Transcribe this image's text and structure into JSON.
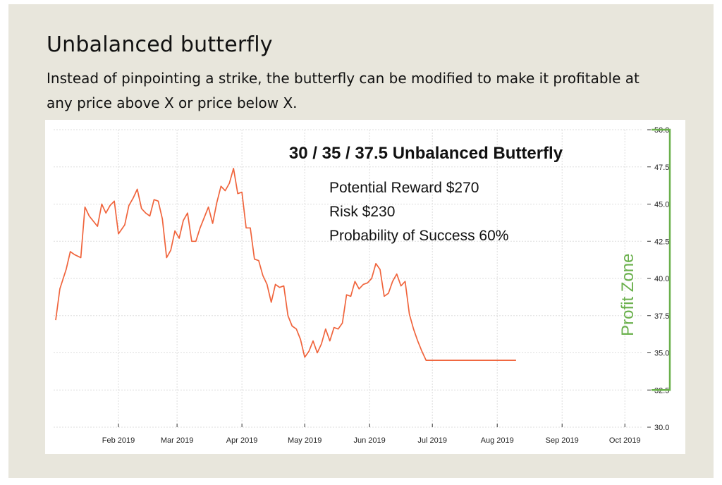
{
  "header": {
    "title": "Unbalanced butterfly",
    "description": "Instead of pinpointing a strike, the butterfly can be modified to make it profitable at any price above X or price below X."
  },
  "chart_data": {
    "type": "line",
    "title": "30 / 35 / 37.5 Unbalanced Butterfly",
    "annotations": [
      "Potential Reward $270",
      "Risk $230",
      "Probability of Success 60%"
    ],
    "profit_zone_label": "Profit Zone",
    "profit_zone_range": [
      32.5,
      50.0
    ],
    "profit_zone_color": "#6ab04c",
    "line_color": "#f0643c",
    "grid": true,
    "y_axis_position": "right",
    "ylim": [
      30.0,
      50.0
    ],
    "y_ticks": [
      "30.0",
      "32.5",
      "35.0",
      "37.5",
      "40.0",
      "42.5",
      "45.0",
      "47.5",
      "50.0"
    ],
    "x_ticks": [
      "Feb 2019",
      "Mar 2019",
      "Apr 2019",
      "May 2019",
      "Jun 2019",
      "Jul 2019",
      "Aug 2019",
      "Sep 2019",
      "Oct 2019"
    ],
    "x_tick_dates": [
      "2019-02-01",
      "2019-03-01",
      "2019-04-01",
      "2019-05-01",
      "2019-06-01",
      "2019-07-01",
      "2019-08-01",
      "2019-09-01",
      "2019-10-01"
    ],
    "xlim": [
      "2019-01-01",
      "2019-10-09"
    ],
    "series": [
      {
        "x": [
          "2019-01-02",
          "2019-01-04",
          "2019-01-07",
          "2019-01-09",
          "2019-01-11",
          "2019-01-14",
          "2019-01-16",
          "2019-01-18",
          "2019-01-22",
          "2019-01-24",
          "2019-01-26",
          "2019-01-28",
          "2019-01-30",
          "2019-02-01",
          "2019-02-04",
          "2019-02-06",
          "2019-02-08",
          "2019-02-10",
          "2019-02-12",
          "2019-02-14",
          "2019-02-16",
          "2019-02-18",
          "2019-02-20",
          "2019-02-22",
          "2019-02-24",
          "2019-02-26",
          "2019-02-28",
          "2019-03-02",
          "2019-03-04",
          "2019-03-06",
          "2019-03-08",
          "2019-03-10",
          "2019-03-12",
          "2019-03-14",
          "2019-03-16",
          "2019-03-18",
          "2019-03-20",
          "2019-03-22",
          "2019-03-24",
          "2019-03-26",
          "2019-03-28",
          "2019-03-30",
          "2019-04-01",
          "2019-04-03",
          "2019-04-05",
          "2019-04-07",
          "2019-04-09",
          "2019-04-11",
          "2019-04-13",
          "2019-04-15",
          "2019-04-17",
          "2019-04-19",
          "2019-04-21",
          "2019-04-23",
          "2019-04-25",
          "2019-04-27",
          "2019-04-29",
          "2019-05-01",
          "2019-05-03",
          "2019-05-05",
          "2019-05-07",
          "2019-05-09",
          "2019-05-11",
          "2019-05-13",
          "2019-05-15",
          "2019-05-17",
          "2019-05-19",
          "2019-05-21",
          "2019-05-23",
          "2019-05-25",
          "2019-05-27",
          "2019-05-29",
          "2019-05-31",
          "2019-06-02",
          "2019-06-04",
          "2019-06-06",
          "2019-06-08",
          "2019-06-10",
          "2019-06-12",
          "2019-06-14",
          "2019-06-16",
          "2019-06-18",
          "2019-06-20",
          "2019-06-22",
          "2019-06-24",
          "2019-06-26",
          "2019-06-28",
          "2019-06-30",
          "2019-07-02",
          "2019-07-04",
          "2019-07-06",
          "2019-07-08",
          "2019-07-10",
          "2019-07-12",
          "2019-07-14",
          "2019-07-16",
          "2019-07-18",
          "2019-07-20",
          "2019-07-22",
          "2019-07-24",
          "2019-07-26",
          "2019-07-28",
          "2019-07-30",
          "2019-08-01",
          "2019-08-03",
          "2019-08-05",
          "2019-08-07",
          "2019-08-09",
          "2019-08-10"
        ],
        "values": [
          37.2,
          39.3,
          40.6,
          41.8,
          41.6,
          41.4,
          44.8,
          44.2,
          43.5,
          45.0,
          44.4,
          44.9,
          45.2,
          43.0,
          43.6,
          44.9,
          45.4,
          46.0,
          44.7,
          44.4,
          44.2,
          45.3,
          45.2,
          44.0,
          41.4,
          41.9,
          43.2,
          42.7,
          43.9,
          44.4,
          42.5,
          42.5,
          43.4,
          44.1,
          44.8,
          43.7,
          45.1,
          46.2,
          45.9,
          46.4,
          47.4,
          45.7,
          45.8,
          43.4,
          43.4,
          41.3,
          41.2,
          40.2,
          39.6,
          38.4,
          39.6,
          39.4,
          39.5,
          37.5,
          36.8,
          36.6,
          35.9,
          34.7,
          35.1,
          35.8,
          35.0,
          35.6,
          36.6,
          35.8,
          36.7,
          36.6,
          37.0,
          38.9,
          38.8,
          39.8,
          39.3,
          39.6,
          39.7,
          40.0,
          41.0,
          40.6,
          38.8,
          39.0,
          39.8,
          40.3,
          39.5,
          39.8,
          37.6,
          36.6,
          35.8,
          35.1,
          34.5,
          34.5,
          34.5,
          34.5,
          34.5,
          34.5,
          34.5,
          34.5,
          34.5,
          34.5,
          34.5,
          34.5,
          34.5,
          34.5,
          34.5,
          34.5,
          34.5,
          34.5,
          34.5,
          34.5,
          34.5,
          34.5,
          34.5
        ]
      }
    ]
  }
}
